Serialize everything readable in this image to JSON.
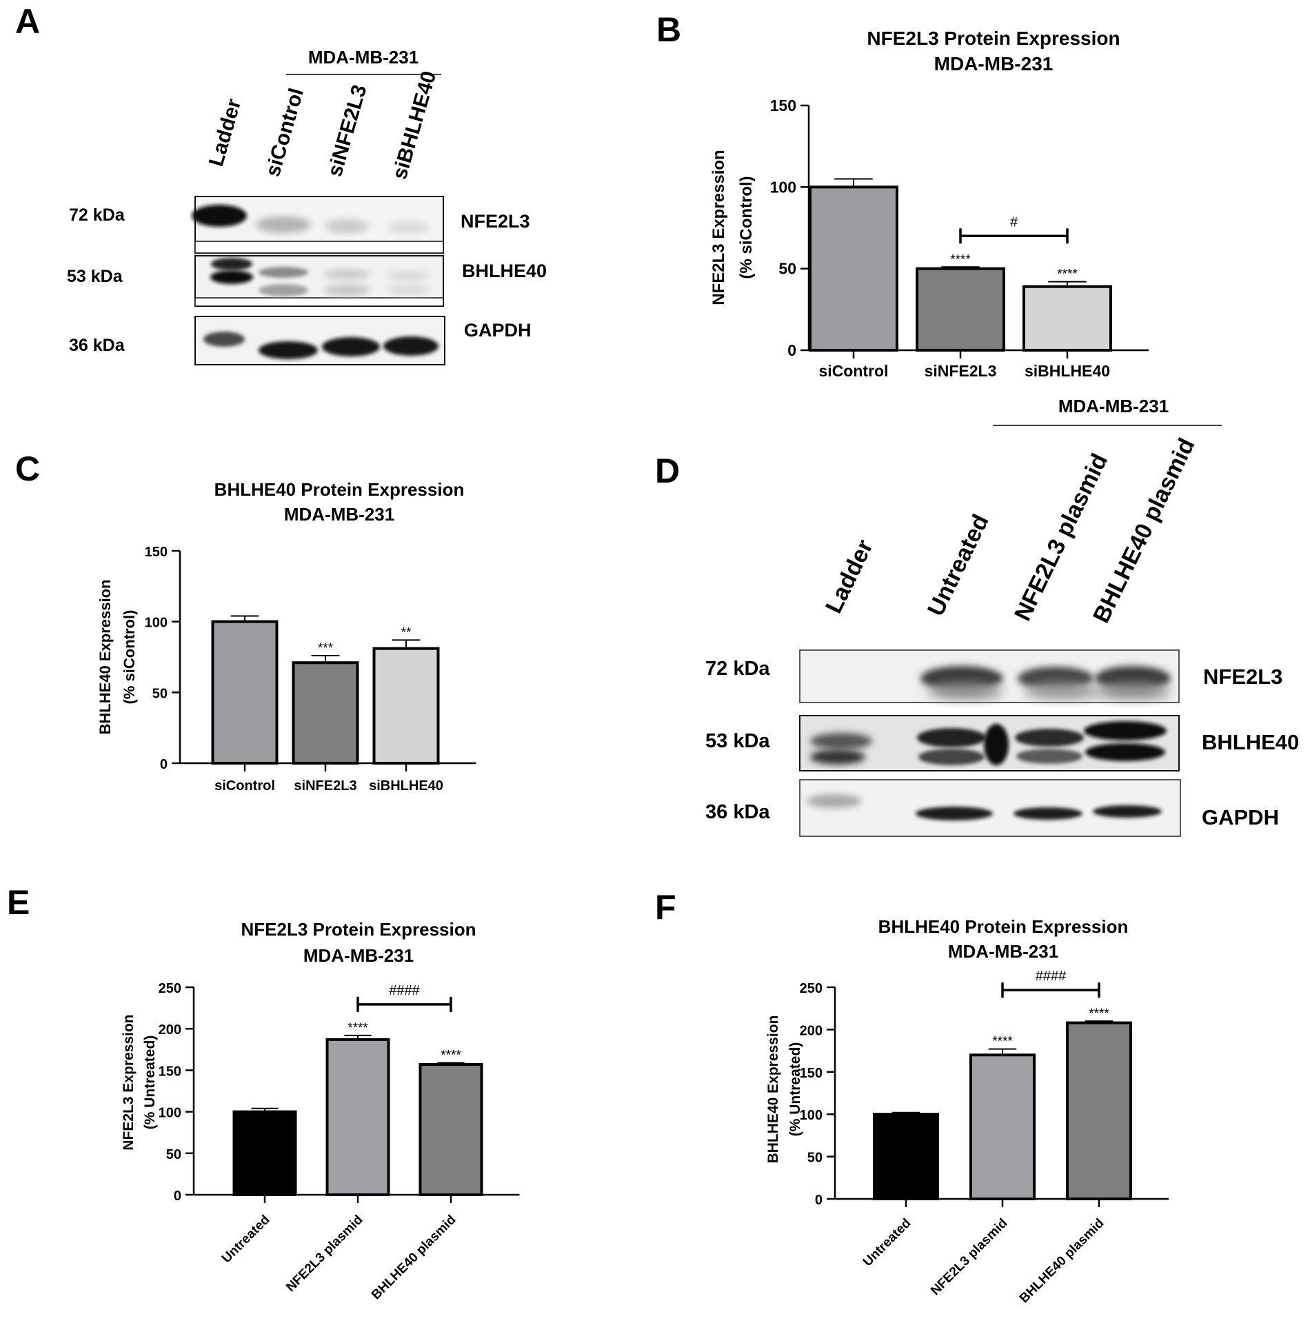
{
  "panel_labels": [
    "A",
    "B",
    "C",
    "D",
    "E",
    "F"
  ],
  "blots": [
    {
      "panel": "A",
      "cell_line": "MDA-MB-231",
      "lanes": [
        "Ladder",
        "siControl",
        "siNFE2L3",
        "siBHLHE40"
      ],
      "markers": [
        "72 kDa",
        "53 kDa",
        "36 kDa"
      ],
      "proteins": [
        "NFE2L3",
        "BHLHE40",
        "GAPDH"
      ]
    },
    {
      "panel": "D",
      "cell_line": "MDA-MB-231",
      "lanes": [
        "Ladder",
        "Untreated",
        "NFE2L3 plasmid",
        "BHLHE40 plasmid"
      ],
      "markers": [
        "72 kDa",
        "53 kDa",
        "36 kDa"
      ],
      "proteins": [
        "NFE2L3",
        "BHLHE40",
        "GAPDH"
      ]
    }
  ],
  "chart_data": [
    {
      "panel": "B",
      "type": "bar",
      "title": "NFE2L3 Protein Expression",
      "subtitle": "MDA-MB-231",
      "ylabel": "NFE2L3 Expression",
      "ylabel2": "(% siControl)",
      "xlabel": "",
      "categories": [
        "siControl",
        "siNFE2L3",
        "siBHLHE40"
      ],
      "values": [
        100,
        50,
        39
      ],
      "errors": [
        5,
        1,
        3
      ],
      "bar_colors": [
        "#9d9ca1",
        "#7f7f7f",
        "#d4d4d4"
      ],
      "ylim": [
        0,
        150
      ],
      "yticks": [
        0,
        50,
        100,
        150
      ],
      "significance": [
        "",
        "****",
        "****"
      ],
      "comparison": {
        "from": 1,
        "to": 2,
        "label": "#"
      }
    },
    {
      "panel": "C",
      "type": "bar",
      "title": "BHLHE40 Protein Expression",
      "subtitle": "MDA-MB-231",
      "ylabel": "BHLHE40 Expression",
      "ylabel2": "(% siControl)",
      "xlabel": "",
      "categories": [
        "siControl",
        "siNFE2L3",
        "siBHLHE40"
      ],
      "values": [
        100,
        71,
        81
      ],
      "errors": [
        4,
        5,
        6
      ],
      "bar_colors": [
        "#9d9ca1",
        "#7f7f7f",
        "#d4d4d4"
      ],
      "ylim": [
        0,
        150
      ],
      "yticks": [
        0,
        50,
        100,
        150
      ],
      "significance": [
        "",
        "***",
        "**"
      ]
    },
    {
      "panel": "E",
      "type": "bar",
      "title": "NFE2L3 Protein Expression",
      "subtitle": "MDA-MB-231",
      "ylabel": "NFE2L3 Expression",
      "ylabel2": "(% Untreated)",
      "xlabel": "",
      "categories": [
        "Untreated",
        "NFE2L3 plasmid",
        "BHLHE40 plasmid"
      ],
      "values": [
        100,
        187,
        157
      ],
      "errors": [
        4,
        5,
        2
      ],
      "bar_colors": [
        "#000000",
        "#a1a0a5",
        "#7f7f7f"
      ],
      "ylim": [
        0,
        250
      ],
      "yticks": [
        0,
        50,
        100,
        150,
        200,
        250
      ],
      "significance": [
        "",
        "****",
        "****"
      ],
      "comparison": {
        "from": 1,
        "to": 2,
        "label": "####"
      }
    },
    {
      "panel": "F",
      "type": "bar",
      "title": "BHLHE40 Protein Expression",
      "subtitle": "MDA-MB-231",
      "ylabel": "BHLHE40 Expression",
      "ylabel2": "(% Untreated)",
      "xlabel": "",
      "categories": [
        "Untreated",
        "NFE2L3 plasmid",
        "BHLHE40 plasmid"
      ],
      "values": [
        100,
        170,
        208
      ],
      "errors": [
        2,
        7,
        2
      ],
      "bar_colors": [
        "#000000",
        "#a1a0a5",
        "#7f7f7f"
      ],
      "ylim": [
        0,
        250
      ],
      "yticks": [
        0,
        50,
        100,
        150,
        200,
        250
      ],
      "significance": [
        "",
        "****",
        "****"
      ],
      "comparison": {
        "from": 1,
        "to": 2,
        "label": "####"
      }
    }
  ]
}
